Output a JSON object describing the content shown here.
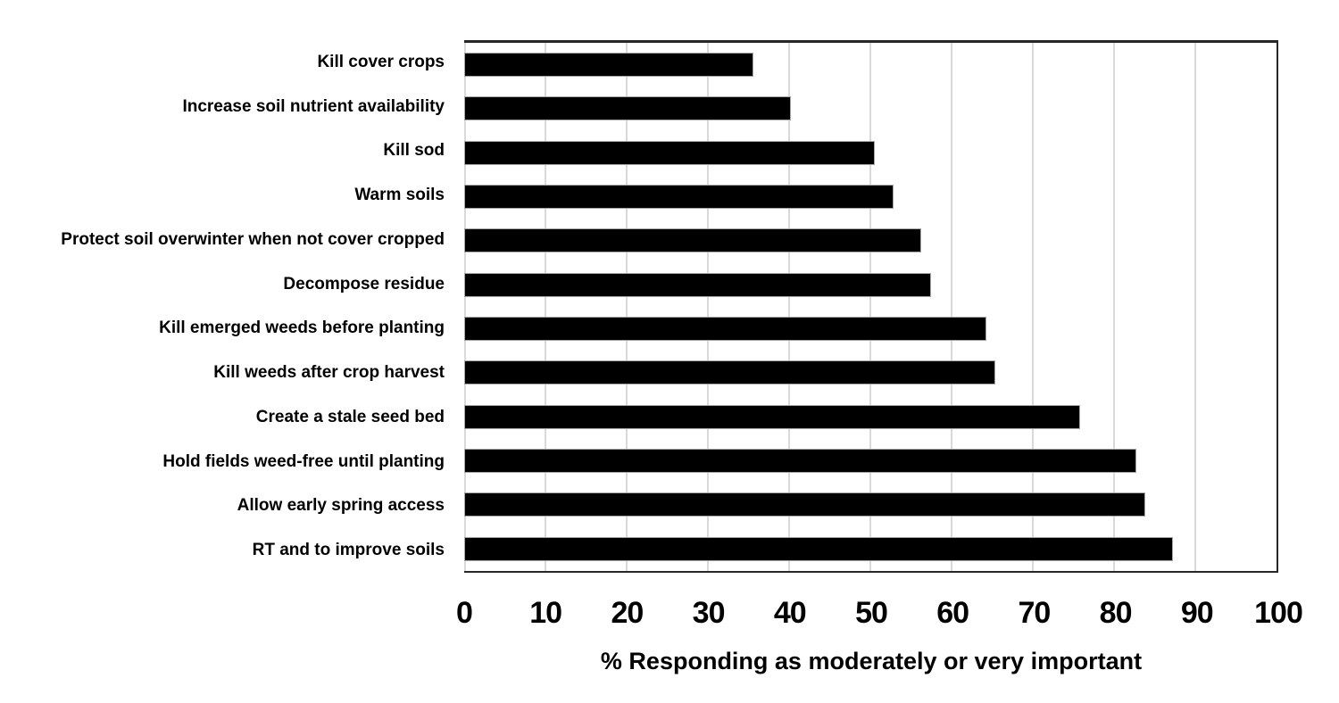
{
  "chart_data": {
    "type": "bar",
    "orientation": "horizontal",
    "title": "",
    "xlabel": "% Responding as moderately or very important",
    "ylabel": "",
    "xlim": [
      0,
      100
    ],
    "xticks": [
      0,
      10,
      20,
      30,
      40,
      50,
      60,
      70,
      80,
      90,
      100
    ],
    "grid": "vertical light gray gridlines every 10",
    "legend": "none",
    "categories": [
      "Kill cover crops",
      "Increase soil nutrient availability",
      "Kill sod",
      "Warm soils",
      "Protect soil overwinter when not cover cropped",
      "Decompose residue",
      "Kill emerged weeds before planting",
      "Kill weeds after crop harvest",
      "Create a stale seed bed",
      "Hold fields weed-free until planting",
      "Allow early spring access",
      "RT and to improve soils"
    ],
    "values": [
      35.6,
      40.2,
      50.5,
      52.9,
      56.3,
      57.5,
      64.3,
      65.4,
      75.8,
      82.7,
      83.9,
      87.3
    ],
    "colors": {
      "bar_fill": "#000000",
      "bar_outline": "#a6a6a6",
      "gridline": "#d9d9d9",
      "plot_border": "#262626",
      "text": "#000000",
      "background": "#ffffff"
    }
  }
}
